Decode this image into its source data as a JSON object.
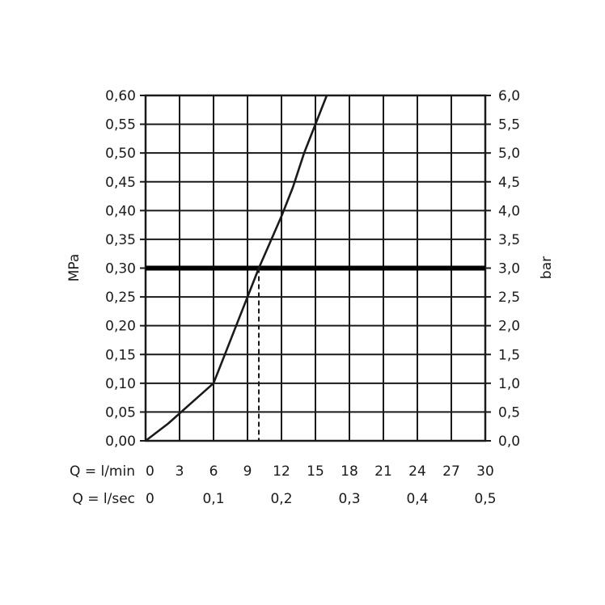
{
  "chart_data": {
    "type": "line",
    "title": "",
    "ylabel": "MPa",
    "y2label": "bar",
    "x_axes": [
      {
        "label": "Q = l/min",
        "ticks": [
          "0",
          "3",
          "6",
          "9",
          "12",
          "15",
          "18",
          "21",
          "24",
          "27",
          "30"
        ]
      },
      {
        "label": "Q = l/sec",
        "ticks": [
          "0",
          "0,1",
          "0,2",
          "0,3",
          "0,4",
          "0,5"
        ]
      }
    ],
    "xlim": [
      0,
      30
    ],
    "ylim": [
      0,
      0.6
    ],
    "y_ticks": [
      "0,00",
      "0,05",
      "0,10",
      "0,15",
      "0,20",
      "0,25",
      "0,30",
      "0,35",
      "0,40",
      "0,45",
      "0,50",
      "0,55",
      "0,60"
    ],
    "y2lim": [
      0,
      6
    ],
    "y2_ticks": [
      "0,0",
      "0,5",
      "1,0",
      "1,5",
      "2,0",
      "2,5",
      "3,0",
      "3,5",
      "4,0",
      "4,5",
      "5,0",
      "5,5",
      "6,0"
    ],
    "grid": true,
    "series": [
      {
        "x": [
          0,
          2,
          4,
          6,
          7,
          8,
          9,
          10,
          11,
          12,
          13,
          14,
          15,
          16
        ],
        "y": [
          0,
          0.03,
          0.065,
          0.1,
          0.15,
          0.2,
          0.25,
          0.3,
          0.345,
          0.39,
          0.44,
          0.5,
          0.55,
          0.6
        ]
      }
    ],
    "reference_line": {
      "y": 0.3
    },
    "marker_x": 10,
    "colors": {
      "line": "#1a1a1a",
      "reference": "#000000"
    }
  }
}
